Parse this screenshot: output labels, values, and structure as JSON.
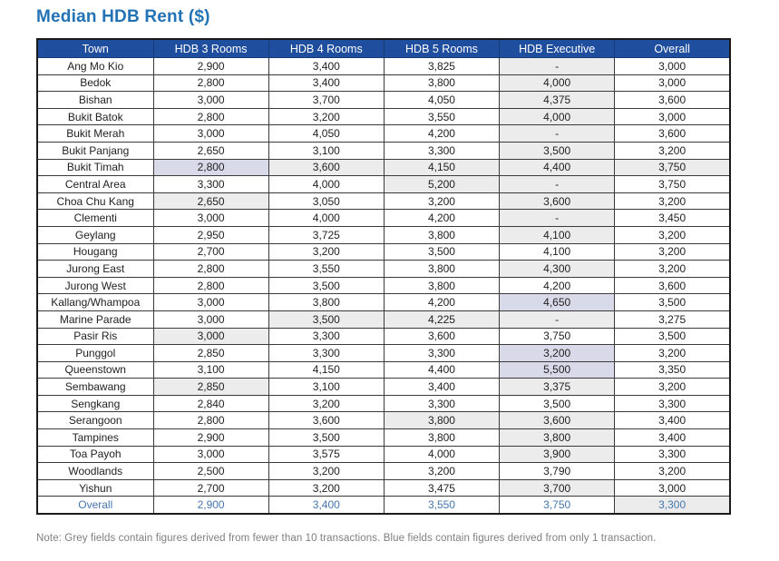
{
  "title": "Median HDB Rent ($)",
  "note": "Note: Grey fields contain figures derived from fewer than 10 transactions. Blue fields contain figures derived from only 1 transaction.",
  "colors": {
    "title_text": "#2272b5",
    "header_bg": "#1f4e9e",
    "header_text": "#ffffff",
    "grey_field": "#ececec",
    "blue_field": "#d8daea",
    "overall_row_text": "#4676ad",
    "note_text": "#7f7f7f"
  },
  "legend": {
    "grey_field_meaning": "figures derived from fewer than 10 transactions",
    "blue_field_meaning": "figures derived from only 1 transaction"
  },
  "chart_data": {
    "type": "table",
    "title": "Median HDB Rent ($)",
    "columns": [
      "Town",
      "HDB 3 Rooms",
      "HDB 4 Rooms",
      "HDB 5 Rooms",
      "HDB Executive",
      "Overall"
    ],
    "rows": [
      {
        "town": "Ang Mo Kio",
        "values": [
          "2,900",
          "3,400",
          "3,825",
          "-",
          "3,000"
        ],
        "marks": [
          "",
          "",
          "",
          "grey",
          ""
        ]
      },
      {
        "town": "Bedok",
        "values": [
          "2,800",
          "3,400",
          "3,800",
          "4,000",
          "3,000"
        ],
        "marks": [
          "",
          "",
          "",
          "grey",
          ""
        ]
      },
      {
        "town": "Bishan",
        "values": [
          "3,000",
          "3,700",
          "4,050",
          "4,375",
          "3,600"
        ],
        "marks": [
          "",
          "",
          "",
          "grey",
          ""
        ]
      },
      {
        "town": "Bukit Batok",
        "values": [
          "2,800",
          "3,200",
          "3,550",
          "4,000",
          "3,000"
        ],
        "marks": [
          "",
          "",
          "",
          "grey",
          ""
        ]
      },
      {
        "town": "Bukit Merah",
        "values": [
          "3,000",
          "4,050",
          "4,200",
          "-",
          "3,600"
        ],
        "marks": [
          "",
          "",
          "",
          "grey",
          ""
        ]
      },
      {
        "town": "Bukit Panjang",
        "values": [
          "2,650",
          "3,100",
          "3,300",
          "3,500",
          "3,200"
        ],
        "marks": [
          "",
          "",
          "",
          "grey",
          ""
        ]
      },
      {
        "town": "Bukit Timah",
        "values": [
          "2,800",
          "3,600",
          "4,150",
          "4,400",
          "3,750"
        ],
        "marks": [
          "blue",
          "grey",
          "grey",
          "grey",
          "grey"
        ]
      },
      {
        "town": "Central Area",
        "values": [
          "3,300",
          "4,000",
          "5,200",
          "-",
          "3,750"
        ],
        "marks": [
          "",
          "",
          "grey",
          "grey",
          ""
        ]
      },
      {
        "town": "Choa Chu Kang",
        "values": [
          "2,650",
          "3,050",
          "3,200",
          "3,600",
          "3,200"
        ],
        "marks": [
          "grey",
          "",
          "",
          "grey",
          ""
        ]
      },
      {
        "town": "Clementi",
        "values": [
          "3,000",
          "4,000",
          "4,200",
          "-",
          "3,450"
        ],
        "marks": [
          "",
          "",
          "",
          "grey",
          ""
        ]
      },
      {
        "town": "Geylang",
        "values": [
          "2,950",
          "3,725",
          "3,800",
          "4,100",
          "3,200"
        ],
        "marks": [
          "",
          "",
          "",
          "grey",
          ""
        ]
      },
      {
        "town": "Hougang",
        "values": [
          "2,700",
          "3,200",
          "3,500",
          "4,100",
          "3,200"
        ],
        "marks": [
          "",
          "",
          "",
          "",
          ""
        ]
      },
      {
        "town": "Jurong East",
        "values": [
          "2,800",
          "3,550",
          "3,800",
          "4,300",
          "3,200"
        ],
        "marks": [
          "",
          "",
          "",
          "grey",
          ""
        ]
      },
      {
        "town": "Jurong West",
        "values": [
          "2,800",
          "3,500",
          "3,800",
          "4,200",
          "3,600"
        ],
        "marks": [
          "",
          "",
          "",
          "",
          ""
        ]
      },
      {
        "town": "Kallang/Whampoa",
        "values": [
          "3,000",
          "3,800",
          "4,200",
          "4,650",
          "3,500"
        ],
        "marks": [
          "",
          "",
          "",
          "blue",
          ""
        ]
      },
      {
        "town": "Marine Parade",
        "values": [
          "3,000",
          "3,500",
          "4,225",
          "-",
          "3,275"
        ],
        "marks": [
          "",
          "grey",
          "grey",
          "grey",
          ""
        ]
      },
      {
        "town": "Pasir Ris",
        "values": [
          "3,000",
          "3,300",
          "3,600",
          "3,750",
          "3,500"
        ],
        "marks": [
          "grey",
          "",
          "",
          "",
          ""
        ]
      },
      {
        "town": "Punggol",
        "values": [
          "2,850",
          "3,300",
          "3,300",
          "3,200",
          "3,200"
        ],
        "marks": [
          "",
          "",
          "",
          "blue",
          ""
        ]
      },
      {
        "town": "Queenstown",
        "values": [
          "3,100",
          "4,150",
          "4,400",
          "5,500",
          "3,350"
        ],
        "marks": [
          "",
          "",
          "",
          "blue",
          ""
        ]
      },
      {
        "town": "Sembawang",
        "values": [
          "2,850",
          "3,100",
          "3,400",
          "3,375",
          "3,200"
        ],
        "marks": [
          "grey",
          "",
          "",
          "grey",
          ""
        ]
      },
      {
        "town": "Sengkang",
        "values": [
          "2,840",
          "3,200",
          "3,300",
          "3,500",
          "3,300"
        ],
        "marks": [
          "",
          "",
          "",
          "",
          ""
        ]
      },
      {
        "town": "Serangoon",
        "values": [
          "2,800",
          "3,600",
          "3,800",
          "3,600",
          "3,400"
        ],
        "marks": [
          "",
          "",
          "grey",
          "grey",
          ""
        ]
      },
      {
        "town": "Tampines",
        "values": [
          "2,900",
          "3,500",
          "3,800",
          "3,800",
          "3,400"
        ],
        "marks": [
          "",
          "",
          "",
          "grey",
          ""
        ]
      },
      {
        "town": "Toa Payoh",
        "values": [
          "3,000",
          "3,575",
          "4,000",
          "3,900",
          "3,300"
        ],
        "marks": [
          "",
          "",
          "",
          "grey",
          ""
        ]
      },
      {
        "town": "Woodlands",
        "values": [
          "2,500",
          "3,200",
          "3,200",
          "3,790",
          "3,200"
        ],
        "marks": [
          "",
          "",
          "",
          "",
          ""
        ]
      },
      {
        "town": "Yishun",
        "values": [
          "2,700",
          "3,200",
          "3,475",
          "3,700",
          "3,000"
        ],
        "marks": [
          "",
          "",
          "",
          "grey",
          ""
        ]
      }
    ],
    "overall_row": {
      "label": "Overall",
      "values": [
        "2,900",
        "3,400",
        "3,550",
        "3,750",
        "3,300"
      ],
      "marks": [
        "",
        "",
        "",
        "",
        "grey"
      ]
    }
  }
}
